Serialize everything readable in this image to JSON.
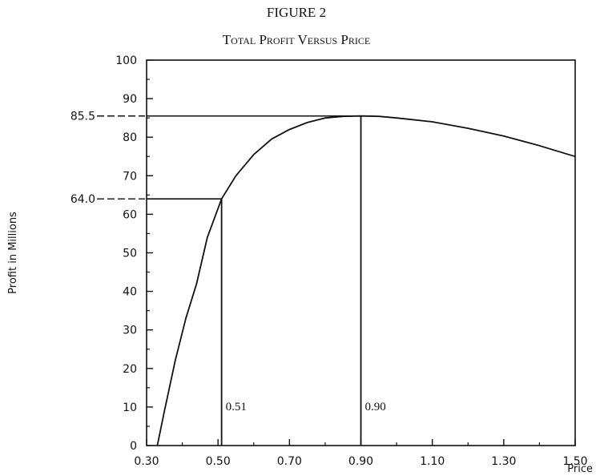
{
  "figure_label": "FIGURE 2",
  "chart_data": {
    "type": "line",
    "title": "Total Profit Versus Price",
    "xlabel": "Price",
    "ylabel": "Profit in Millions",
    "xlim": [
      0.3,
      1.5
    ],
    "ylim": [
      0,
      100
    ],
    "x_ticks": [
      "0.30",
      "0.50",
      "0.70",
      "0.90",
      "1.10",
      "1.30",
      "1.50"
    ],
    "y_ticks": [
      "0",
      "10",
      "20",
      "30",
      "40",
      "50",
      "60",
      "70",
      "80",
      "90",
      "100"
    ],
    "grid": false,
    "series": [
      {
        "x": [
          0.33,
          0.35,
          0.38,
          0.41,
          0.44,
          0.47,
          0.51,
          0.55,
          0.6,
          0.65,
          0.7,
          0.75,
          0.8,
          0.85,
          0.9,
          0.95,
          1.0,
          1.1,
          1.2,
          1.3,
          1.4,
          1.5
        ],
        "values": [
          0,
          9,
          22,
          33,
          42,
          54,
          64,
          70,
          75.5,
          79.5,
          82,
          83.8,
          85,
          85.4,
          85.5,
          85.4,
          85,
          84,
          82.3,
          80.3,
          77.8,
          75
        ]
      }
    ],
    "annotations": [
      {
        "type": "hline",
        "y": 85.5,
        "x_from": 0.3,
        "x_to": 0.9,
        "label": "85.5"
      },
      {
        "type": "hline",
        "y": 64.0,
        "x_from": 0.3,
        "x_to": 0.51,
        "label": "64.0"
      },
      {
        "type": "vline",
        "x": 0.9,
        "y_from": 0,
        "y_to": 85.5,
        "label": "0.90"
      },
      {
        "type": "vline",
        "x": 0.51,
        "y_from": 0,
        "y_to": 64.0,
        "label": "0.51"
      }
    ]
  }
}
